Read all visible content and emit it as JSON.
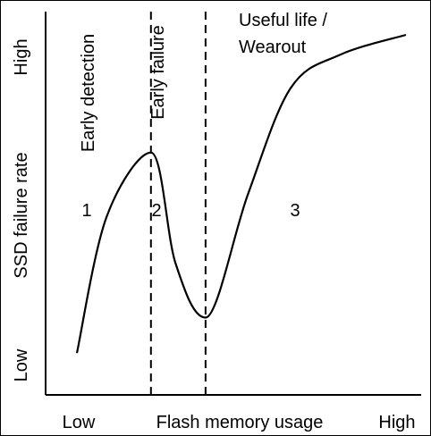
{
  "chart_data": {
    "type": "line",
    "xlabel": "Flash memory usage",
    "ylabel": "SSD failure rate",
    "x_tick_labels": [
      "Low",
      "High"
    ],
    "y_tick_labels": [
      "Low",
      "High"
    ],
    "region_labels": [
      "1",
      "2",
      "3"
    ],
    "region_titles": [
      "Early detection",
      "Early failure"
    ],
    "region_3_title_lines": [
      "Useful life /",
      "Wearout"
    ],
    "boundaries": [
      0.225,
      0.391
    ],
    "series": [
      {
        "x": [
          0.0,
          0.09,
          0.225,
          0.3,
          0.391,
          0.52,
          0.65,
          0.8,
          1.0
        ],
        "y": [
          0.04,
          0.45,
          0.645,
          0.31,
          0.147,
          0.52,
          0.84,
          0.94,
          1.0
        ]
      }
    ],
    "colors": {
      "line": "#000000",
      "background": "#ffffff"
    },
    "grid": false,
    "legend": "none"
  }
}
